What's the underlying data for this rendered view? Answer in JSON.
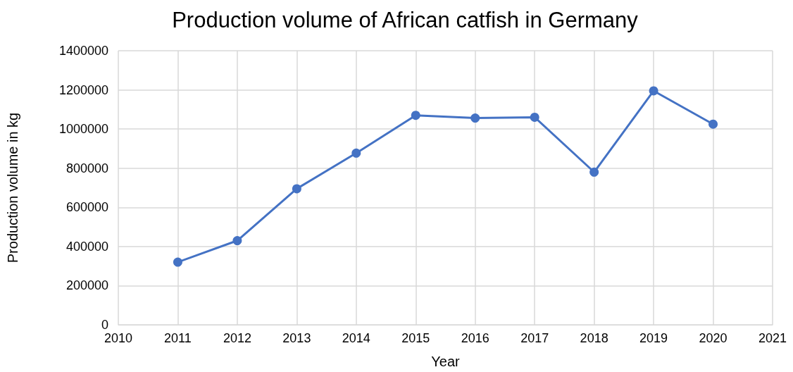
{
  "chart_data": {
    "type": "line",
    "title": "Production volume of African catfish in Germany",
    "xlabel": "Year",
    "ylabel": "Production volume in kg",
    "x": [
      2011,
      2012,
      2013,
      2014,
      2015,
      2016,
      2017,
      2018,
      2019,
      2020
    ],
    "series": [
      {
        "color": "#4472c4",
        "values": [
          320000,
          430000,
          695000,
          877000,
          1070000,
          1056000,
          1060000,
          780000,
          1195000,
          1025000
        ]
      }
    ],
    "xlim": [
      2010,
      2021
    ],
    "xticks": [
      2010,
      2011,
      2012,
      2013,
      2014,
      2015,
      2016,
      2017,
      2018,
      2019,
      2020,
      2021
    ],
    "ylim": [
      0,
      1400000
    ],
    "yticks": [
      0,
      200000,
      400000,
      600000,
      800000,
      1000000,
      1200000,
      1400000
    ],
    "grid": true,
    "marker": "circle",
    "line_style": "solid"
  }
}
